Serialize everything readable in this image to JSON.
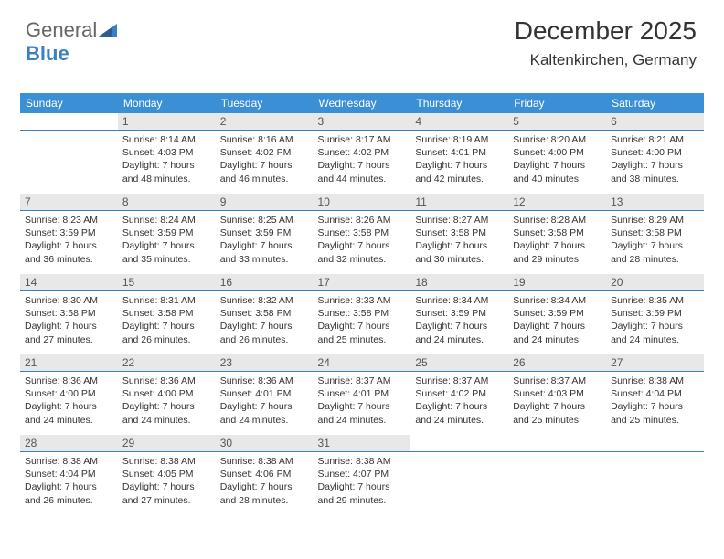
{
  "logo": {
    "part1": "General",
    "part2": "Blue"
  },
  "header": {
    "title": "December 2025",
    "location": "Kaltenkirchen, Germany"
  },
  "colors": {
    "header_bg": "#3b8fd4",
    "header_text": "#ffffff",
    "daynum_bg": "#e8e8e8",
    "daynum_text": "#555555",
    "cell_border": "#3b7fc4",
    "body_text": "#333333",
    "logo_accent": "#3b7fc4"
  },
  "dayHeaders": [
    "Sunday",
    "Monday",
    "Tuesday",
    "Wednesday",
    "Thursday",
    "Friday",
    "Saturday"
  ],
  "weeks": [
    [
      null,
      {
        "n": "1",
        "sr": "8:14 AM",
        "ss": "4:03 PM",
        "dl": "7 hours and 48 minutes."
      },
      {
        "n": "2",
        "sr": "8:16 AM",
        "ss": "4:02 PM",
        "dl": "7 hours and 46 minutes."
      },
      {
        "n": "3",
        "sr": "8:17 AM",
        "ss": "4:02 PM",
        "dl": "7 hours and 44 minutes."
      },
      {
        "n": "4",
        "sr": "8:19 AM",
        "ss": "4:01 PM",
        "dl": "7 hours and 42 minutes."
      },
      {
        "n": "5",
        "sr": "8:20 AM",
        "ss": "4:00 PM",
        "dl": "7 hours and 40 minutes."
      },
      {
        "n": "6",
        "sr": "8:21 AM",
        "ss": "4:00 PM",
        "dl": "7 hours and 38 minutes."
      }
    ],
    [
      {
        "n": "7",
        "sr": "8:23 AM",
        "ss": "3:59 PM",
        "dl": "7 hours and 36 minutes."
      },
      {
        "n": "8",
        "sr": "8:24 AM",
        "ss": "3:59 PM",
        "dl": "7 hours and 35 minutes."
      },
      {
        "n": "9",
        "sr": "8:25 AM",
        "ss": "3:59 PM",
        "dl": "7 hours and 33 minutes."
      },
      {
        "n": "10",
        "sr": "8:26 AM",
        "ss": "3:58 PM",
        "dl": "7 hours and 32 minutes."
      },
      {
        "n": "11",
        "sr": "8:27 AM",
        "ss": "3:58 PM",
        "dl": "7 hours and 30 minutes."
      },
      {
        "n": "12",
        "sr": "8:28 AM",
        "ss": "3:58 PM",
        "dl": "7 hours and 29 minutes."
      },
      {
        "n": "13",
        "sr": "8:29 AM",
        "ss": "3:58 PM",
        "dl": "7 hours and 28 minutes."
      }
    ],
    [
      {
        "n": "14",
        "sr": "8:30 AM",
        "ss": "3:58 PM",
        "dl": "7 hours and 27 minutes."
      },
      {
        "n": "15",
        "sr": "8:31 AM",
        "ss": "3:58 PM",
        "dl": "7 hours and 26 minutes."
      },
      {
        "n": "16",
        "sr": "8:32 AM",
        "ss": "3:58 PM",
        "dl": "7 hours and 26 minutes."
      },
      {
        "n": "17",
        "sr": "8:33 AM",
        "ss": "3:58 PM",
        "dl": "7 hours and 25 minutes."
      },
      {
        "n": "18",
        "sr": "8:34 AM",
        "ss": "3:59 PM",
        "dl": "7 hours and 24 minutes."
      },
      {
        "n": "19",
        "sr": "8:34 AM",
        "ss": "3:59 PM",
        "dl": "7 hours and 24 minutes."
      },
      {
        "n": "20",
        "sr": "8:35 AM",
        "ss": "3:59 PM",
        "dl": "7 hours and 24 minutes."
      }
    ],
    [
      {
        "n": "21",
        "sr": "8:36 AM",
        "ss": "4:00 PM",
        "dl": "7 hours and 24 minutes."
      },
      {
        "n": "22",
        "sr": "8:36 AM",
        "ss": "4:00 PM",
        "dl": "7 hours and 24 minutes."
      },
      {
        "n": "23",
        "sr": "8:36 AM",
        "ss": "4:01 PM",
        "dl": "7 hours and 24 minutes."
      },
      {
        "n": "24",
        "sr": "8:37 AM",
        "ss": "4:01 PM",
        "dl": "7 hours and 24 minutes."
      },
      {
        "n": "25",
        "sr": "8:37 AM",
        "ss": "4:02 PM",
        "dl": "7 hours and 24 minutes."
      },
      {
        "n": "26",
        "sr": "8:37 AM",
        "ss": "4:03 PM",
        "dl": "7 hours and 25 minutes."
      },
      {
        "n": "27",
        "sr": "8:38 AM",
        "ss": "4:04 PM",
        "dl": "7 hours and 25 minutes."
      }
    ],
    [
      {
        "n": "28",
        "sr": "8:38 AM",
        "ss": "4:04 PM",
        "dl": "7 hours and 26 minutes."
      },
      {
        "n": "29",
        "sr": "8:38 AM",
        "ss": "4:05 PM",
        "dl": "7 hours and 27 minutes."
      },
      {
        "n": "30",
        "sr": "8:38 AM",
        "ss": "4:06 PM",
        "dl": "7 hours and 28 minutes."
      },
      {
        "n": "31",
        "sr": "8:38 AM",
        "ss": "4:07 PM",
        "dl": "7 hours and 29 minutes."
      },
      null,
      null,
      null
    ]
  ],
  "labels": {
    "sunrise": "Sunrise: ",
    "sunset": "Sunset: ",
    "daylight": "Daylight: "
  }
}
